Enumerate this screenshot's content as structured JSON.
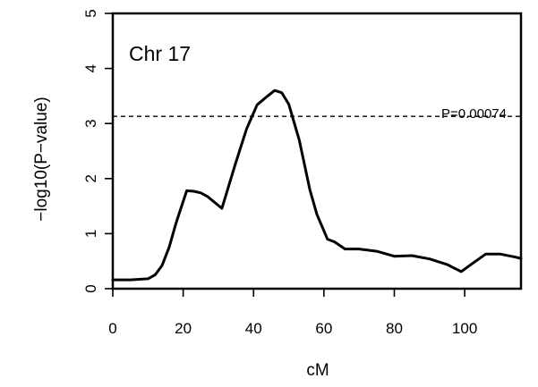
{
  "chart_data": {
    "type": "line",
    "panel_label": "Chr 17",
    "xlabel": "cM",
    "ylabel": "−log10(P−value)",
    "xlim": [
      0,
      116
    ],
    "ylim": [
      0,
      5
    ],
    "x_ticks": [
      0,
      20,
      40,
      60,
      80,
      100
    ],
    "y_ticks": [
      0,
      1,
      2,
      3,
      4,
      5
    ],
    "x_tick_labels": [
      "0",
      "20",
      "40",
      "60",
      "80",
      "100"
    ],
    "y_tick_labels": [
      "0",
      "1",
      "2",
      "3",
      "4",
      "5"
    ],
    "grid": false,
    "threshold": {
      "label": "P=0.00074",
      "value": 3.13
    },
    "series": [
      {
        "x": [
          0,
          5,
          10,
          12,
          14,
          16,
          18,
          21,
          23,
          25,
          27,
          31,
          35,
          38,
          41,
          44,
          46,
          48,
          50,
          53,
          56,
          58,
          61,
          63,
          66,
          70,
          75,
          80,
          85,
          90,
          95,
          99,
          102,
          106,
          110,
          114,
          116
        ],
        "values": [
          0.16,
          0.16,
          0.18,
          0.25,
          0.42,
          0.75,
          1.2,
          1.78,
          1.77,
          1.74,
          1.67,
          1.46,
          2.3,
          2.9,
          3.34,
          3.5,
          3.6,
          3.56,
          3.35,
          2.7,
          1.8,
          1.35,
          0.9,
          0.85,
          0.72,
          0.72,
          0.68,
          0.59,
          0.6,
          0.54,
          0.44,
          0.31,
          0.45,
          0.63,
          0.63,
          0.58,
          0.55
        ]
      }
    ]
  }
}
